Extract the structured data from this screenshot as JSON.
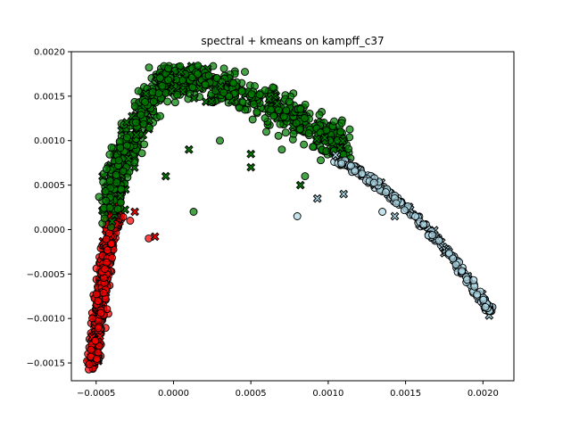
{
  "chart_data": {
    "type": "scatter",
    "title": "spectral + kmeans on kampff_c37",
    "xlabel": "",
    "ylabel": "",
    "xlim": [
      -0.00066,
      0.0022
    ],
    "ylim": [
      -0.0017,
      0.002
    ],
    "x_ticks": [
      -0.0005,
      0.0,
      0.0005,
      0.001,
      0.0015,
      0.002
    ],
    "x_tick_labels": [
      "−0.0005",
      "0.0000",
      "0.0005",
      "0.0010",
      "0.0015",
      "0.0020"
    ],
    "y_ticks": [
      -0.0015,
      -0.001,
      -0.0005,
      0.0,
      0.0005,
      0.001,
      0.0015,
      0.002
    ],
    "y_tick_labels": [
      "−0.0015",
      "−0.0010",
      "−0.0005",
      "0.0000",
      "0.0005",
      "0.0010",
      "0.0015",
      "0.0020"
    ],
    "grid": false,
    "legend": "none",
    "clusters": [
      {
        "color": "#ff0000",
        "trend": [
          [
            -0.00052,
            -0.00155
          ],
          [
            -0.0005,
            -0.0012
          ],
          [
            -0.00048,
            -0.0009
          ],
          [
            -0.00046,
            -0.0006
          ],
          [
            -0.00043,
            -0.0003
          ],
          [
            -0.0004,
            0.0
          ],
          [
            -0.00036,
            0.0002
          ]
        ],
        "outliers": [
          [
            -0.00025,
            0.0002
          ],
          [
            -0.00016,
            -0.0001
          ],
          [
            -0.00012,
            -8e-05
          ],
          [
            -0.00028,
            0.0001
          ]
        ]
      },
      {
        "color": "#008000",
        "trend": [
          [
            -0.00042,
            0.0002
          ],
          [
            -0.00036,
            0.0006
          ],
          [
            -0.0003,
            0.0009
          ],
          [
            -0.0002,
            0.0013
          ],
          [
            -0.0001,
            0.0016
          ],
          [
            0.0,
            0.00172
          ],
          [
            0.0002,
            0.00165
          ],
          [
            0.0004,
            0.00155
          ],
          [
            0.0006,
            0.0014
          ],
          [
            0.0008,
            0.00125
          ],
          [
            0.001,
            0.00105
          ],
          [
            0.0011,
            0.0009
          ]
        ],
        "outliers": [
          [
            -5e-05,
            0.0006
          ],
          [
            0.00013,
            0.0002
          ],
          [
            0.0001,
            0.0009
          ],
          [
            0.0003,
            0.001
          ],
          [
            0.0005,
            0.0007
          ],
          [
            0.0006,
            0.0011
          ],
          [
            0.00082,
            0.0005
          ],
          [
            0.00085,
            0.0006
          ],
          [
            0.0005,
            0.00085
          ],
          [
            0.0007,
            0.0009
          ]
        ]
      },
      {
        "color": "#add8e6",
        "trend": [
          [
            0.00105,
            0.0008
          ],
          [
            0.0012,
            0.00065
          ],
          [
            0.0014,
            0.0004
          ],
          [
            0.0016,
            8e-05
          ],
          [
            0.0018,
            -0.0003
          ],
          [
            0.002,
            -0.0008
          ],
          [
            0.00205,
            -0.00092
          ]
        ],
        "outliers": [
          [
            0.00093,
            0.00035
          ],
          [
            0.0008,
            0.00015
          ],
          [
            0.0011,
            0.0004
          ],
          [
            0.00135,
            0.0002
          ],
          [
            0.00143,
            0.00015
          ]
        ]
      }
    ]
  }
}
